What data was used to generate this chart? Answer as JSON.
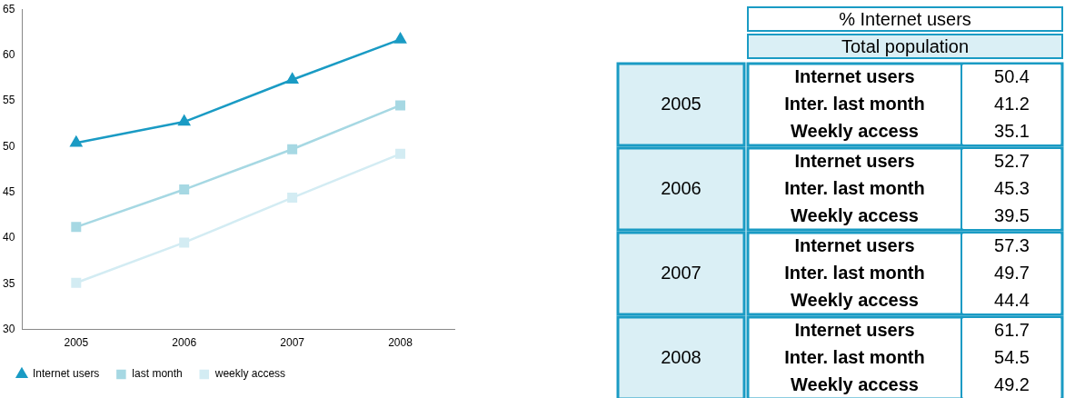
{
  "chart_data": [
    {
      "type": "line",
      "categories": [
        "2005",
        "2006",
        "2007",
        "2008"
      ],
      "series": [
        {
          "name": "Internet users",
          "color": "#1a9bc4",
          "marker": "triangle",
          "values": [
            50.4,
            52.7,
            57.3,
            61.7
          ]
        },
        {
          "name": "last month",
          "color": "#a6d8e3",
          "marker": "square",
          "values": [
            41.2,
            45.3,
            49.7,
            54.5
          ]
        },
        {
          "name": "weekly access",
          "color": "#d3ecf3",
          "marker": "square",
          "values": [
            35.1,
            39.5,
            44.4,
            49.2
          ]
        }
      ],
      "ylim": [
        30,
        65
      ],
      "yticks": [
        30,
        35,
        40,
        45,
        50,
        55,
        60,
        65
      ],
      "grid": false,
      "legend": "bottom"
    },
    {
      "type": "heatmap",
      "title": "% Internet users",
      "subtitle": "Total population",
      "categories": [
        null
      ],
      "y_categories": [
        "Internet users",
        "Inter. last month",
        "Weekly access",
        "Internet users",
        "Inter. last month",
        "Weekly access",
        "Internet users",
        "Inter. last month",
        "Weekly access",
        "Internet users",
        "Inter. last month",
        "Weekly access"
      ],
      "y2_categories": [
        null,
        "2005",
        null,
        null,
        "2006",
        null,
        null,
        "2007",
        null,
        null,
        "2008",
        null
      ],
      "cells": [
        [
          50.4
        ],
        [
          41.2
        ],
        [
          35.1
        ],
        [
          52.7
        ],
        [
          45.3
        ],
        [
          39.5
        ],
        [
          57.3
        ],
        [
          49.7
        ],
        [
          44.4
        ],
        [
          61.7
        ],
        [
          54.5
        ],
        [
          49.2
        ]
      ],
      "data_labels": true
    }
  ]
}
